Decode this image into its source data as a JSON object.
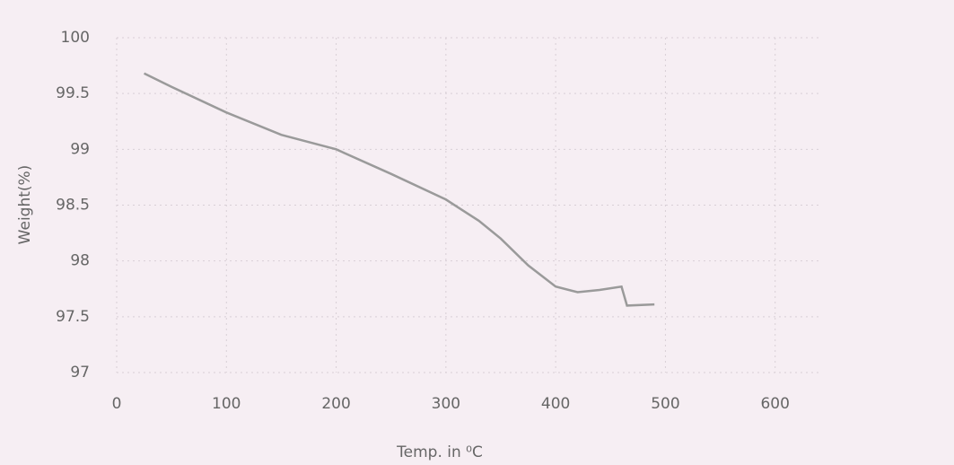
{
  "chart_data": {
    "type": "line",
    "x_label": "Temp. in ⁰C",
    "y_label": "Weight(%)",
    "xlim": [
      0,
      700
    ],
    "xticks": [
      0,
      100,
      200,
      300,
      400,
      500,
      600
    ],
    "ylim": [
      97,
      100
    ],
    "yticks": [
      97,
      97.5,
      98,
      98.5,
      99,
      99.5,
      100
    ],
    "grid": true,
    "x": [
      25,
      50,
      100,
      150,
      200,
      250,
      300,
      330,
      350,
      375,
      400,
      420,
      440,
      460,
      465,
      490
    ],
    "series": [
      {
        "name": "Weight",
        "color": "#9a9a9a",
        "values": [
          99.68,
          99.56,
          99.33,
          99.13,
          99.0,
          98.78,
          98.55,
          98.36,
          98.2,
          97.96,
          97.77,
          97.72,
          97.74,
          97.77,
          97.6,
          97.61
        ]
      }
    ]
  }
}
